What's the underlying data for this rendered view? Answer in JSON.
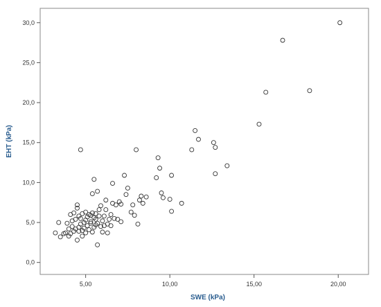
{
  "chart_data": {
    "type": "scatter",
    "title": "",
    "xlabel": "SWE (kPa)",
    "ylabel": "EHT (kPa)",
    "xlim": [
      2.3,
      21.8
    ],
    "ylim": [
      -1.5,
      31.8
    ],
    "xticks": [
      "5,00",
      "10,00",
      "15,00",
      "20,00"
    ],
    "yticks": [
      "0,0",
      "5,0",
      "10,0",
      "15,0",
      "20,0",
      "25,0",
      "30,0"
    ],
    "xtick_values": [
      5,
      10,
      15,
      20
    ],
    "ytick_values": [
      0,
      5,
      10,
      15,
      20,
      25,
      30
    ],
    "grid": false,
    "marker": "open-circle",
    "colors": {
      "marker_stroke": "#333333",
      "axis_title": "#2a5d8f",
      "axis_line": "#555555",
      "frame": "#888888"
    },
    "series": [
      {
        "points": [
          [
            3.2,
            3.7
          ],
          [
            3.4,
            5.0
          ],
          [
            3.5,
            3.2
          ],
          [
            3.7,
            3.6
          ],
          [
            3.8,
            3.7
          ],
          [
            3.9,
            4.9
          ],
          [
            4.0,
            4.2
          ],
          [
            4.0,
            3.3
          ],
          [
            4.1,
            6.0
          ],
          [
            4.1,
            3.6
          ],
          [
            4.2,
            4.5
          ],
          [
            4.2,
            5.2
          ],
          [
            4.3,
            6.2
          ],
          [
            4.3,
            3.9
          ],
          [
            4.4,
            4.2
          ],
          [
            4.4,
            5.4
          ],
          [
            4.5,
            6.8
          ],
          [
            4.5,
            7.2
          ],
          [
            4.5,
            2.8
          ],
          [
            4.6,
            3.9
          ],
          [
            4.6,
            4.4
          ],
          [
            4.6,
            5.8
          ],
          [
            4.7,
            14.1
          ],
          [
            4.7,
            4.8
          ],
          [
            4.7,
            5.5
          ],
          [
            4.8,
            4.0
          ],
          [
            4.8,
            6.1
          ],
          [
            4.8,
            3.3
          ],
          [
            4.9,
            5.0
          ],
          [
            4.9,
            4.3
          ],
          [
            5.0,
            5.3
          ],
          [
            5.0,
            3.7
          ],
          [
            5.0,
            6.3
          ],
          [
            5.1,
            4.6
          ],
          [
            5.1,
            5.7
          ],
          [
            5.2,
            4.1
          ],
          [
            5.2,
            6.0
          ],
          [
            5.3,
            4.9
          ],
          [
            5.3,
            5.1
          ],
          [
            5.3,
            5.9
          ],
          [
            5.4,
            8.6
          ],
          [
            5.4,
            6.2
          ],
          [
            5.4,
            3.8
          ],
          [
            5.5,
            10.4
          ],
          [
            5.5,
            5.6
          ],
          [
            5.5,
            4.4
          ],
          [
            5.6,
            6.1
          ],
          [
            5.6,
            4.7
          ],
          [
            5.6,
            5.4
          ],
          [
            5.7,
            8.9
          ],
          [
            5.7,
            4.9
          ],
          [
            5.7,
            2.2
          ],
          [
            5.8,
            5.8
          ],
          [
            5.8,
            6.6
          ],
          [
            5.9,
            4.5
          ],
          [
            5.9,
            7.1
          ],
          [
            6.0,
            5.2
          ],
          [
            6.0,
            3.8
          ],
          [
            6.1,
            5.8
          ],
          [
            6.1,
            4.6
          ],
          [
            6.2,
            7.8
          ],
          [
            6.2,
            6.6
          ],
          [
            6.3,
            4.8
          ],
          [
            6.3,
            3.7
          ],
          [
            6.4,
            5.4
          ],
          [
            6.5,
            6.0
          ],
          [
            6.5,
            4.6
          ],
          [
            6.6,
            9.9
          ],
          [
            6.6,
            7.4
          ],
          [
            6.7,
            5.5
          ],
          [
            6.8,
            7.2
          ],
          [
            6.9,
            5.4
          ],
          [
            7.0,
            7.6
          ],
          [
            7.1,
            5.1
          ],
          [
            7.1,
            7.3
          ],
          [
            7.3,
            10.9
          ],
          [
            7.4,
            8.5
          ],
          [
            7.5,
            9.3
          ],
          [
            7.7,
            6.3
          ],
          [
            7.8,
            7.2
          ],
          [
            7.9,
            5.9
          ],
          [
            8.0,
            14.1
          ],
          [
            8.1,
            4.8
          ],
          [
            8.2,
            7.8
          ],
          [
            8.3,
            8.3
          ],
          [
            8.4,
            7.4
          ],
          [
            8.6,
            8.2
          ],
          [
            9.2,
            10.6
          ],
          [
            9.3,
            13.1
          ],
          [
            9.4,
            11.8
          ],
          [
            9.5,
            8.7
          ],
          [
            9.6,
            8.1
          ],
          [
            10.0,
            7.9
          ],
          [
            10.1,
            10.9
          ],
          [
            10.1,
            6.4
          ],
          [
            10.7,
            7.4
          ],
          [
            11.3,
            14.1
          ],
          [
            11.5,
            16.5
          ],
          [
            11.7,
            15.4
          ],
          [
            12.6,
            15.0
          ],
          [
            12.7,
            14.4
          ],
          [
            12.7,
            11.1
          ],
          [
            13.4,
            12.1
          ],
          [
            15.3,
            17.3
          ],
          [
            15.7,
            21.3
          ],
          [
            16.7,
            27.8
          ],
          [
            18.3,
            21.5
          ],
          [
            20.1,
            30.0
          ]
        ]
      }
    ]
  }
}
